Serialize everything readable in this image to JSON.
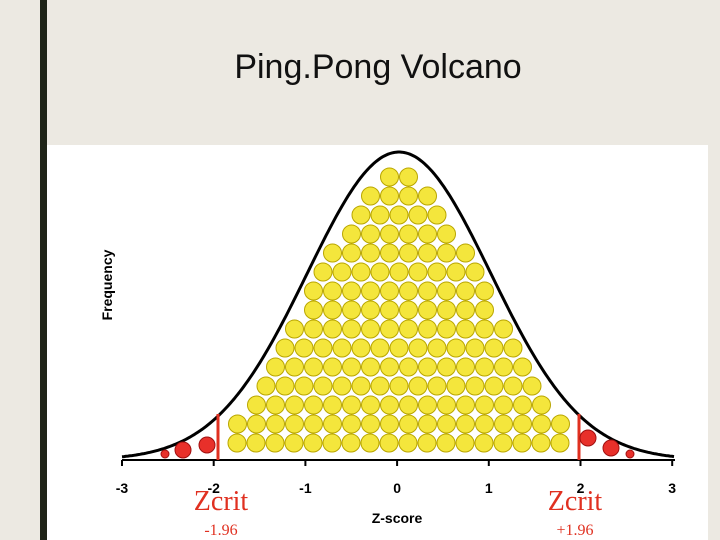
{
  "title": "Ping.Pong Volcano",
  "figure": {
    "y_label": "Frequency",
    "x_label": "Z-score",
    "x_ticks": [
      "-3",
      "-2",
      "-1",
      "0",
      "1",
      "2",
      "3"
    ],
    "critical": [
      {
        "label": "Zcrit",
        "value": "-1.96"
      },
      {
        "label": "Zcrit",
        "value": "+1.96"
      }
    ]
  }
}
